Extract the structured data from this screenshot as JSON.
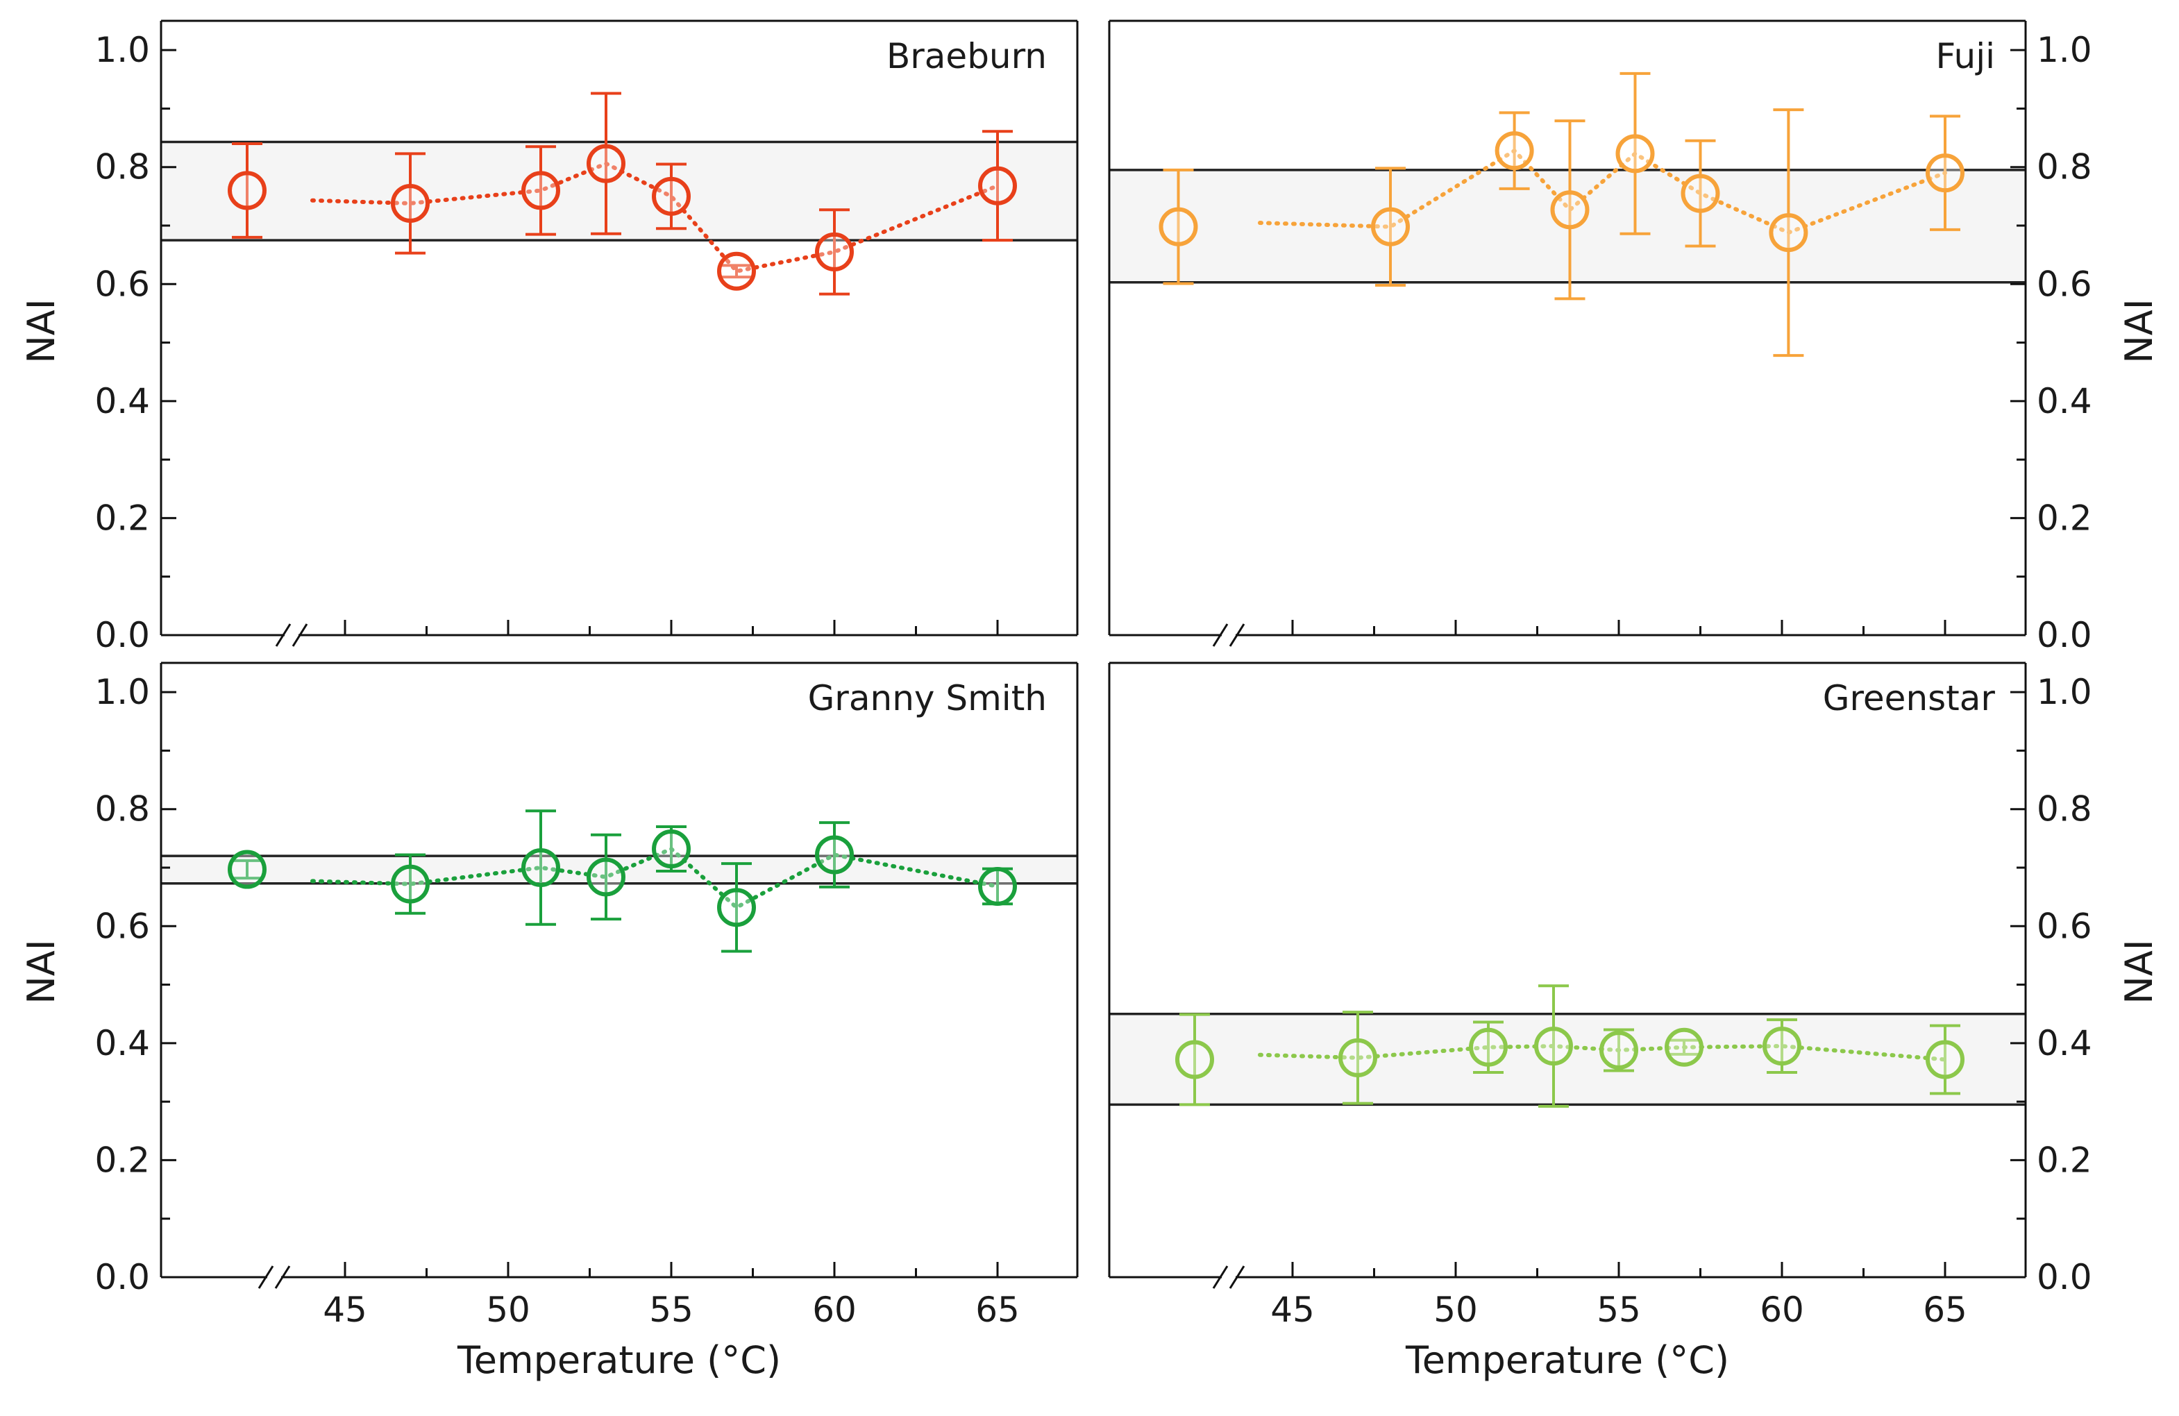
{
  "figure": {
    "y_axis_label": "NAI",
    "x_axis_label": "Temperature (°C)"
  },
  "chart_data": [
    {
      "type": "scatter",
      "title": "Braeburn",
      "color": "#e8401a",
      "xlabel": "",
      "ylabel": "NAI",
      "x_ticks": [
        45,
        50,
        55,
        60,
        65
      ],
      "y_ticks": [
        "0.0",
        "0.2",
        "0.4",
        "0.6",
        "0.8",
        "1.0"
      ],
      "ylim": [
        0,
        1.05
      ],
      "reference": {
        "x": 42,
        "y": 0.76,
        "err_low": 0.08,
        "err_high": 0.08
      },
      "band": [
        0.675,
        0.843
      ],
      "points": [
        {
          "x": 47,
          "y": 0.738,
          "err_low": 0.085,
          "err_high": 0.085
        },
        {
          "x": 51,
          "y": 0.76,
          "err_low": 0.075,
          "err_high": 0.075
        },
        {
          "x": 53,
          "y": 0.806,
          "err_low": 0.12,
          "err_high": 0.12
        },
        {
          "x": 55,
          "y": 0.75,
          "err_low": 0.055,
          "err_high": 0.055
        },
        {
          "x": 57,
          "y": 0.622,
          "err_low": 0.01,
          "err_high": 0.01
        },
        {
          "x": 60,
          "y": 0.655,
          "err_low": 0.072,
          "err_high": 0.072
        },
        {
          "x": 65,
          "y": 0.768,
          "err_low": 0.093,
          "err_high": 0.093
        }
      ]
    },
    {
      "type": "scatter",
      "title": "Fuji",
      "color": "#f7a33a",
      "xlabel": "",
      "ylabel": "NAI",
      "x_ticks": [
        45,
        50,
        55,
        60,
        65
      ],
      "y_ticks": [
        "0.0",
        "0.2",
        "0.4",
        "0.6",
        "0.8",
        "1.0"
      ],
      "ylim": [
        0,
        1.05
      ],
      "reference": {
        "x": 41.5,
        "y": 0.698,
        "err_low": 0.097,
        "err_high": 0.097
      },
      "band": [
        0.603,
        0.795
      ],
      "points": [
        {
          "x": 48,
          "y": 0.698,
          "err_low": 0.1,
          "err_high": 0.1
        },
        {
          "x": 51.8,
          "y": 0.828,
          "err_low": 0.065,
          "err_high": 0.065
        },
        {
          "x": 53.5,
          "y": 0.727,
          "err_low": 0.152,
          "err_high": 0.152
        },
        {
          "x": 55.5,
          "y": 0.823,
          "err_low": 0.137,
          "err_high": 0.137
        },
        {
          "x": 57.5,
          "y": 0.755,
          "err_low": 0.09,
          "err_high": 0.09
        },
        {
          "x": 60.2,
          "y": 0.688,
          "err_low": 0.21,
          "err_high": 0.21
        },
        {
          "x": 65,
          "y": 0.79,
          "err_low": 0.097,
          "err_high": 0.097
        }
      ]
    },
    {
      "type": "scatter",
      "title": "Granny Smith",
      "color": "#1aa03c",
      "xlabel": "Temperature (°C)",
      "ylabel": "NAI",
      "x_ticks": [
        45,
        50,
        55,
        60,
        65
      ],
      "y_ticks": [
        "0.0",
        "0.2",
        "0.4",
        "0.6",
        "0.8",
        "1.0"
      ],
      "ylim": [
        0,
        1.05
      ],
      "reference": {
        "x": 42,
        "y": 0.697,
        "err_low": 0.015,
        "err_high": 0.015
      },
      "band": [
        0.673,
        0.72
      ],
      "points": [
        {
          "x": 47,
          "y": 0.672,
          "err_low": 0.05,
          "err_high": 0.05
        },
        {
          "x": 51,
          "y": 0.7,
          "err_low": 0.097,
          "err_high": 0.097
        },
        {
          "x": 53,
          "y": 0.684,
          "err_low": 0.072,
          "err_high": 0.072
        },
        {
          "x": 55,
          "y": 0.732,
          "err_low": 0.038,
          "err_high": 0.038
        },
        {
          "x": 57,
          "y": 0.632,
          "err_low": 0.075,
          "err_high": 0.075
        },
        {
          "x": 60,
          "y": 0.722,
          "err_low": 0.055,
          "err_high": 0.055
        },
        {
          "x": 65,
          "y": 0.668,
          "err_low": 0.03,
          "err_high": 0.03
        }
      ]
    },
    {
      "type": "scatter",
      "title": "Greenstar",
      "color": "#8cc84b",
      "xlabel": "Temperature (°C)",
      "ylabel": "NAI",
      "x_ticks": [
        45,
        50,
        55,
        60,
        65
      ],
      "y_ticks": [
        "0.0",
        "0.2",
        "0.4",
        "0.6",
        "0.8",
        "1.0"
      ],
      "ylim": [
        0,
        1.05
      ],
      "reference": {
        "x": 42,
        "y": 0.372,
        "err_low": 0.077,
        "err_high": 0.077
      },
      "band": [
        0.295,
        0.45
      ],
      "points": [
        {
          "x": 47,
          "y": 0.375,
          "err_low": 0.078,
          "err_high": 0.078
        },
        {
          "x": 51,
          "y": 0.393,
          "err_low": 0.043,
          "err_high": 0.043
        },
        {
          "x": 53,
          "y": 0.395,
          "err_low": 0.103,
          "err_high": 0.103
        },
        {
          "x": 55,
          "y": 0.388,
          "err_low": 0.035,
          "err_high": 0.035
        },
        {
          "x": 57,
          "y": 0.393,
          "err_low": 0.012,
          "err_high": 0.012
        },
        {
          "x": 60,
          "y": 0.395,
          "err_low": 0.045,
          "err_high": 0.045
        },
        {
          "x": 65,
          "y": 0.372,
          "err_low": 0.058,
          "err_high": 0.058
        }
      ]
    }
  ]
}
